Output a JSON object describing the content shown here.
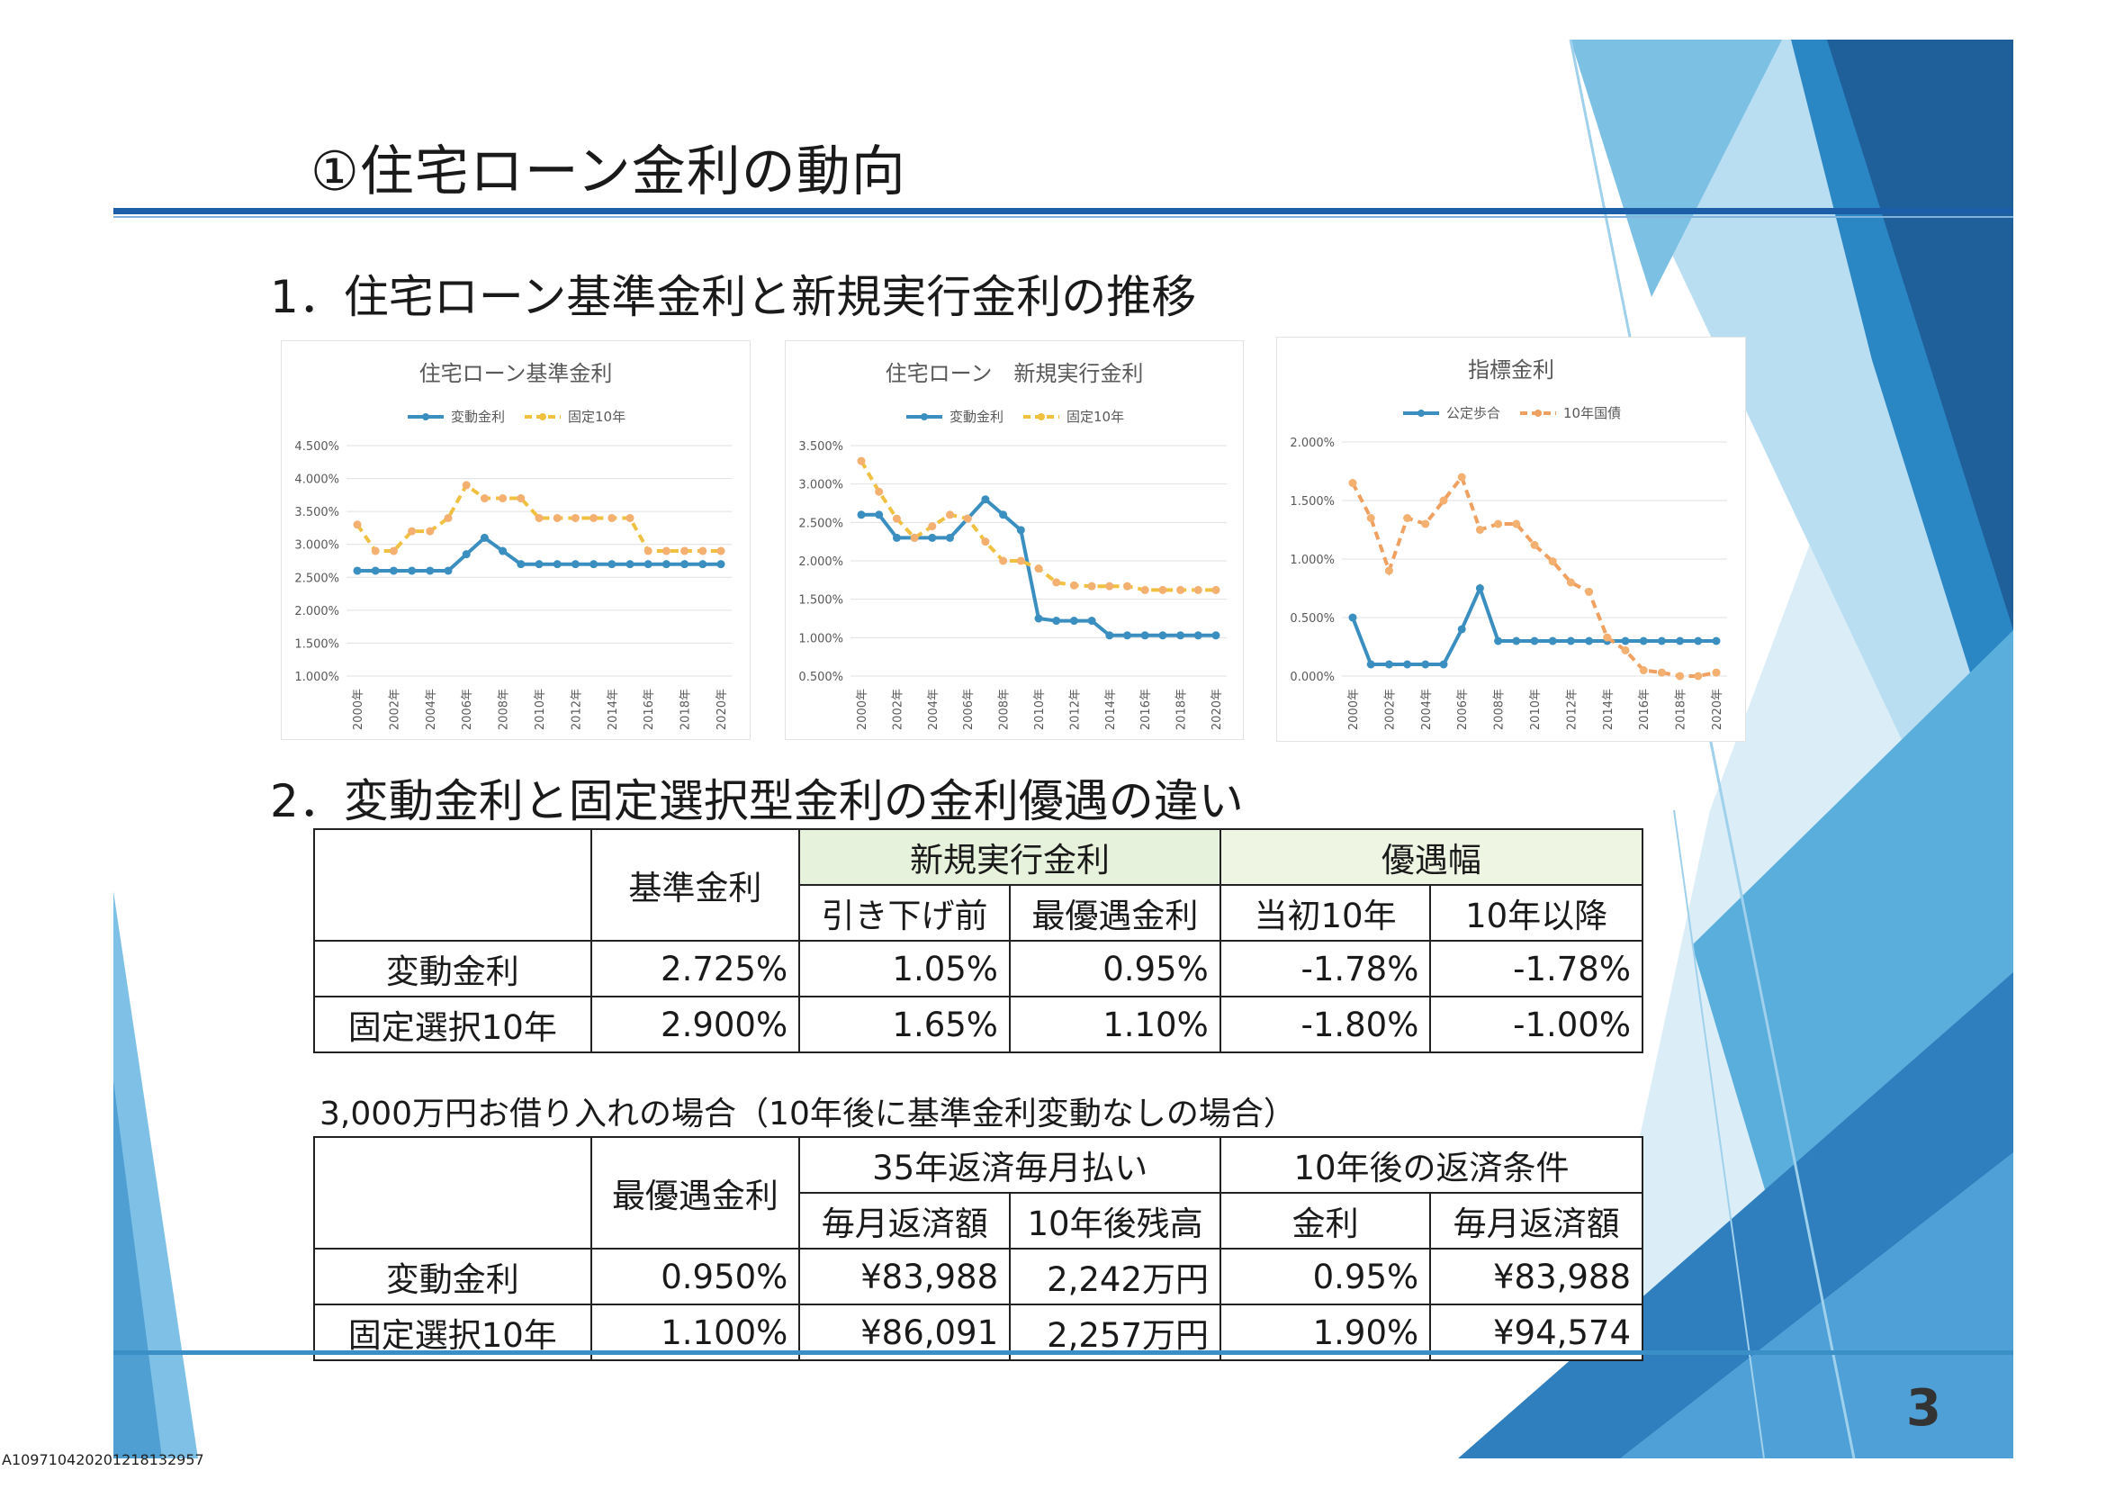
{
  "page": {
    "title": "①住宅ローン金利の動向",
    "section1": "1．住宅ローン基準金利と新規実行金利の推移",
    "section2": "2．変動金利と固定選択型金利の金利優遇の違い",
    "note": "3,000万円お借り入れの場合（10年後に基準金利変動なしの場合）",
    "page_number": "3",
    "doc_id": "A109710420201218132957"
  },
  "chart_data": [
    {
      "type": "line",
      "title": "住宅ローン基準金利",
      "x": [
        "2000年",
        "2001年",
        "2002年",
        "2003年",
        "2004年",
        "2005年",
        "2006年",
        "2007年",
        "2008年",
        "2009年",
        "2010年",
        "2011年",
        "2012年",
        "2013年",
        "2014年",
        "2015年",
        "2016年",
        "2017年",
        "2018年",
        "2019年",
        "2020年"
      ],
      "xticks": [
        "2000年",
        "2002年",
        "2004年",
        "2006年",
        "2008年",
        "2010年",
        "2012年",
        "2014年",
        "2016年",
        "2018年",
        "2020年"
      ],
      "yticks": [
        "1.000%",
        "1.500%",
        "2.000%",
        "2.500%",
        "3.000%",
        "3.500%",
        "4.000%",
        "4.500%"
      ],
      "ylim": [
        1.0,
        4.5
      ],
      "legend_position": "top",
      "series": [
        {
          "name": "変動金利",
          "color": "#3a8fc0",
          "dashed": false,
          "values": [
            2.6,
            2.6,
            2.6,
            2.6,
            2.6,
            2.6,
            2.85,
            3.1,
            2.9,
            2.7,
            2.7,
            2.7,
            2.7,
            2.7,
            2.7,
            2.7,
            2.7,
            2.7,
            2.7,
            2.7,
            2.7
          ]
        },
        {
          "name": "固定10年",
          "color": "#f0c040",
          "dashed": true,
          "values": [
            3.3,
            2.9,
            2.9,
            3.2,
            3.2,
            3.4,
            3.9,
            3.7,
            3.7,
            3.7,
            3.4,
            3.4,
            3.4,
            3.4,
            3.4,
            3.4,
            2.9,
            2.9,
            2.9,
            2.9,
            2.9
          ]
        }
      ]
    },
    {
      "type": "line",
      "title": "住宅ローン　新規実行金利",
      "x": [
        "2000年",
        "2001年",
        "2002年",
        "2003年",
        "2004年",
        "2005年",
        "2006年",
        "2007年",
        "2008年",
        "2009年",
        "2010年",
        "2011年",
        "2012年",
        "2013年",
        "2014年",
        "2015年",
        "2016年",
        "2017年",
        "2018年",
        "2019年",
        "2020年"
      ],
      "xticks": [
        "2000年",
        "2002年",
        "2004年",
        "2006年",
        "2008年",
        "2010年",
        "2012年",
        "2014年",
        "2016年",
        "2018年",
        "2020年"
      ],
      "yticks": [
        "0.500%",
        "1.000%",
        "1.500%",
        "2.000%",
        "2.500%",
        "3.000%",
        "3.500%"
      ],
      "ylim": [
        0.5,
        3.5
      ],
      "legend_position": "top",
      "series": [
        {
          "name": "変動金利",
          "color": "#3a8fc0",
          "dashed": false,
          "values": [
            2.6,
            2.6,
            2.3,
            2.3,
            2.3,
            2.3,
            2.55,
            2.8,
            2.6,
            2.4,
            1.25,
            1.22,
            1.22,
            1.22,
            1.03,
            1.03,
            1.03,
            1.03,
            1.03,
            1.03,
            1.03
          ]
        },
        {
          "name": "固定10年",
          "color": "#f0c040",
          "dashed": true,
          "values": [
            3.3,
            2.9,
            2.55,
            2.3,
            2.45,
            2.6,
            2.55,
            2.25,
            2.0,
            2.0,
            1.9,
            1.72,
            1.68,
            1.67,
            1.67,
            1.67,
            1.62,
            1.62,
            1.62,
            1.62,
            1.62
          ]
        }
      ]
    },
    {
      "type": "line",
      "title": "指標金利",
      "x": [
        "2000年",
        "2001年",
        "2002年",
        "2003年",
        "2004年",
        "2005年",
        "2006年",
        "2007年",
        "2008年",
        "2009年",
        "2010年",
        "2011年",
        "2012年",
        "2013年",
        "2014年",
        "2015年",
        "2016年",
        "2017年",
        "2018年",
        "2019年",
        "2020年"
      ],
      "xticks": [
        "2000年",
        "2002年",
        "2004年",
        "2006年",
        "2008年",
        "2010年",
        "2012年",
        "2014年",
        "2016年",
        "2018年",
        "2020年"
      ],
      "yticks": [
        "0.000%",
        "0.500%",
        "1.000%",
        "1.500%",
        "2.000%"
      ],
      "ylim": [
        0.0,
        2.0
      ],
      "legend_position": "top",
      "series": [
        {
          "name": "公定歩合",
          "color": "#3a8fc0",
          "dashed": false,
          "values": [
            0.5,
            0.1,
            0.1,
            0.1,
            0.1,
            0.1,
            0.4,
            0.75,
            0.3,
            0.3,
            0.3,
            0.3,
            0.3,
            0.3,
            0.3,
            0.3,
            0.3,
            0.3,
            0.3,
            0.3,
            0.3
          ]
        },
        {
          "name": "10年国債",
          "color": "#f0a060",
          "dashed": true,
          "values": [
            1.65,
            1.35,
            0.9,
            1.35,
            1.3,
            1.5,
            1.7,
            1.25,
            1.3,
            1.3,
            1.12,
            0.98,
            0.8,
            0.72,
            0.33,
            0.22,
            0.05,
            0.03,
            0.0,
            0.0,
            0.03
          ]
        }
      ]
    }
  ],
  "table1": {
    "header": {
      "col_base": "基準金利",
      "group_new": "新規実行金利",
      "group_pref": "優遇幅",
      "sub_before": "引き下げ前",
      "sub_best": "最優遇金利",
      "sub_first10": "当初10年",
      "sub_after10": "10年以降"
    },
    "rows": [
      {
        "label": "変動金利",
        "base": "2.725%",
        "before": "1.05%",
        "best": "0.95%",
        "first10": "-1.78%",
        "after10": "-1.78%"
      },
      {
        "label": "固定選択10年",
        "base": "2.900%",
        "before": "1.65%",
        "best": "1.10%",
        "first10": "-1.80%",
        "after10": "-1.00%"
      }
    ]
  },
  "table2": {
    "header": {
      "col_best": "最優遇金利",
      "group_35": "35年返済毎月払い",
      "group_after": "10年後の返済条件",
      "sub_monthly": "毎月返済額",
      "sub_balance": "10年後残高",
      "sub_rate": "金利",
      "sub_monthly2": "毎月返済額"
    },
    "rows": [
      {
        "label": "変動金利",
        "best": "0.950%",
        "monthly": "¥83,988",
        "balance": "2,242万円",
        "rate": "0.95%",
        "monthly2": "¥83,988"
      },
      {
        "label": "固定選択10年",
        "best": "1.100%",
        "monthly": "¥86,091",
        "balance": "2,257万円",
        "rate": "1.90%",
        "monthly2": "¥94,574"
      }
    ]
  }
}
